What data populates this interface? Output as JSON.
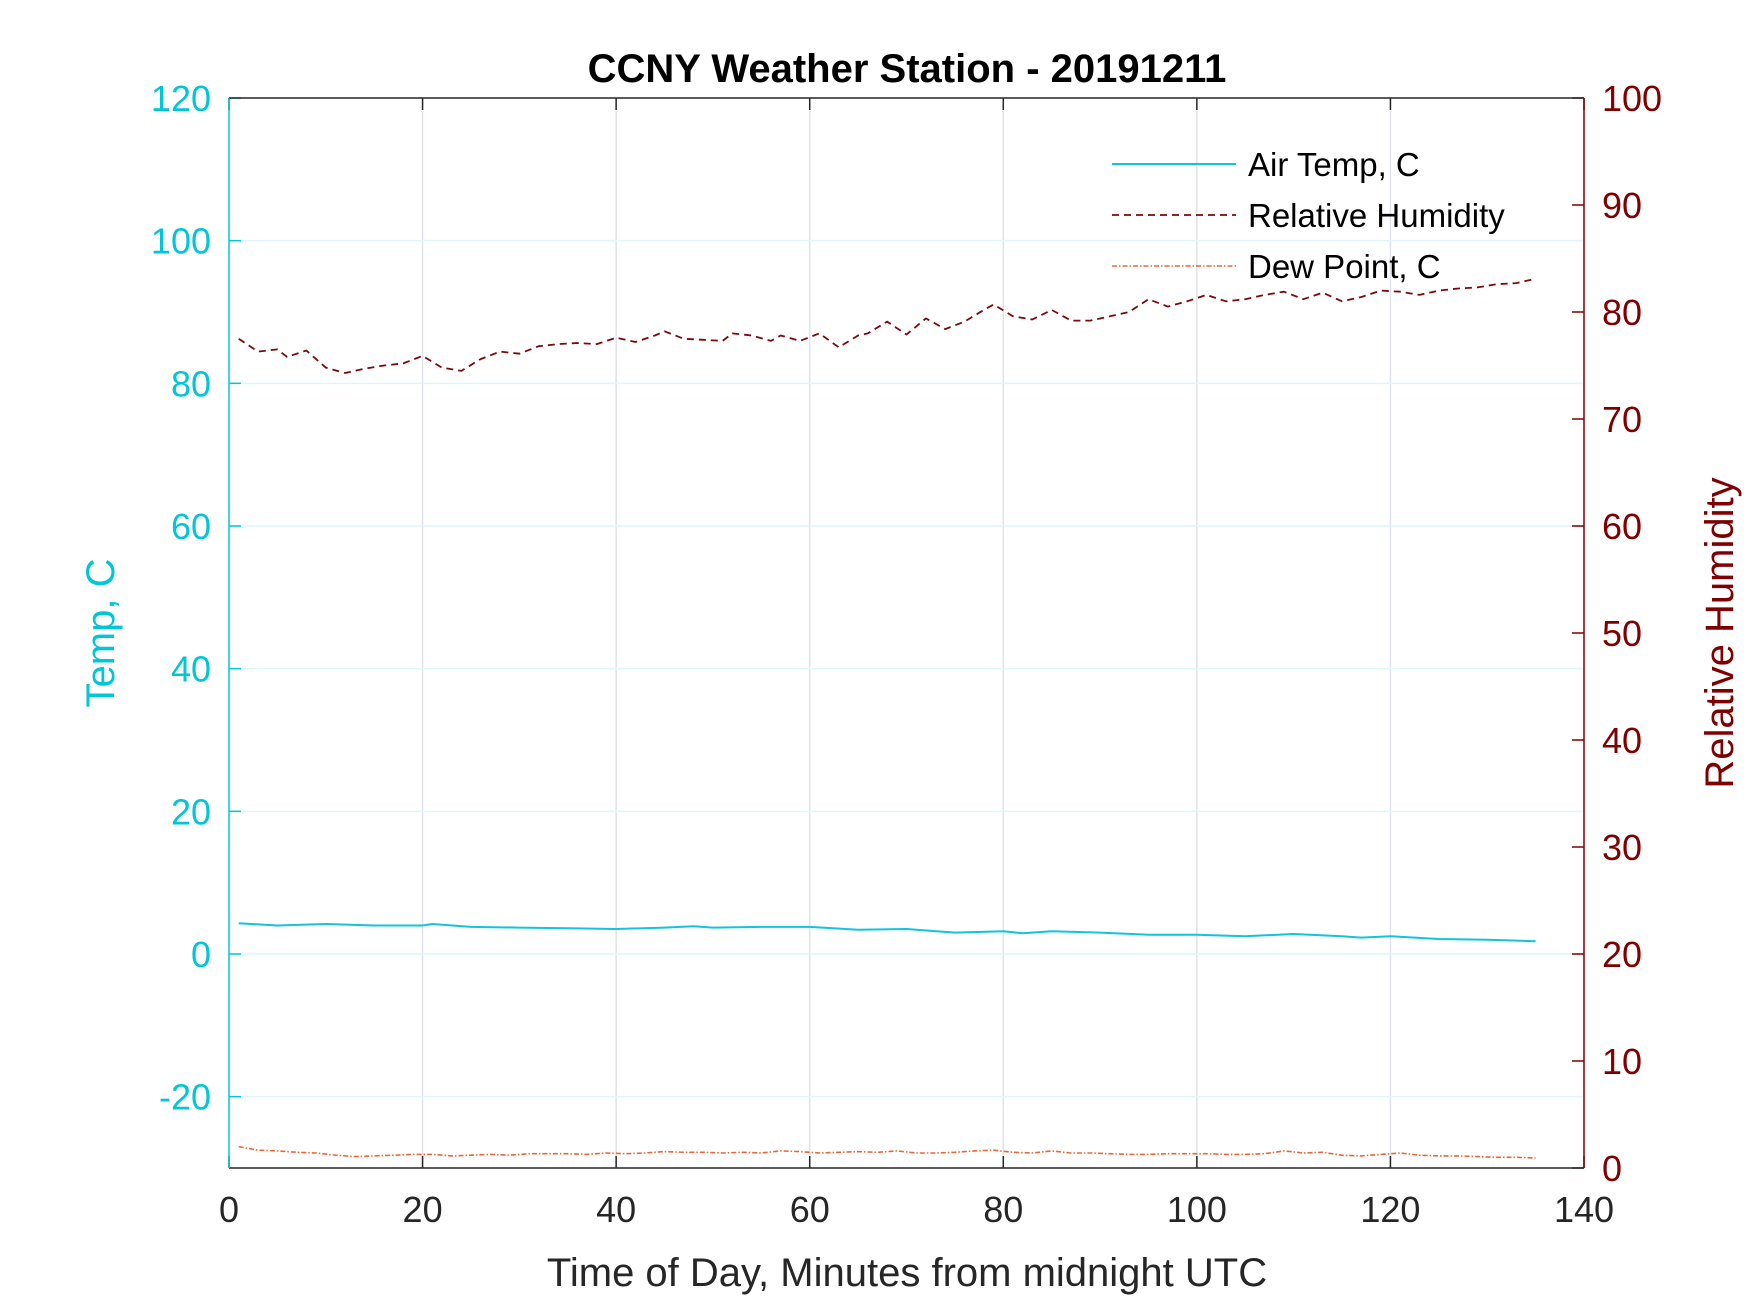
{
  "chart_data": {
    "type": "line",
    "title": "CCNY Weather Station - 20191211",
    "xlabel": "Time of Day, Minutes from midnight UTC",
    "ylabel_left": "Temp, C",
    "ylabel_right": "Relative Humidity",
    "xlim": [
      0,
      140
    ],
    "ylim_left": [
      -30,
      120
    ],
    "ylim_right": [
      0,
      100
    ],
    "x_ticks": [
      "0",
      "20",
      "40",
      "60",
      "80",
      "100",
      "120",
      "140"
    ],
    "y_left_ticks": [
      "-20",
      "0",
      "20",
      "40",
      "60",
      "80",
      "100",
      "120"
    ],
    "y_right_ticks": [
      "0",
      "10",
      "20",
      "30",
      "40",
      "50",
      "60",
      "70",
      "80",
      "90",
      "100"
    ],
    "grid": true,
    "legend_position": "top-right",
    "colors": {
      "left_axis": "#00c6d8",
      "right_axis": "#7f0000",
      "air_temp": "#12c4dc",
      "humidity": "#7a0a0a",
      "dew_point": "#e8683a"
    },
    "series": [
      {
        "name": "Air Temp, C",
        "axis": "left",
        "style": "solid",
        "x": [
          1,
          5,
          10,
          15,
          20,
          21,
          25,
          30,
          35,
          40,
          45,
          48,
          50,
          55,
          60,
          65,
          70,
          75,
          80,
          82,
          85,
          90,
          95,
          100,
          105,
          110,
          115,
          117,
          120,
          125,
          130,
          135
        ],
        "values": [
          4.3,
          4.0,
          4.2,
          4.0,
          4.0,
          4.2,
          3.8,
          3.7,
          3.6,
          3.5,
          3.7,
          3.9,
          3.7,
          3.8,
          3.8,
          3.4,
          3.5,
          3.0,
          3.2,
          2.9,
          3.2,
          3.0,
          2.7,
          2.7,
          2.5,
          2.8,
          2.5,
          2.3,
          2.5,
          2.1,
          2.0,
          1.8
        ]
      },
      {
        "name": "Relative Humidity",
        "axis": "right",
        "style": "dashed",
        "x": [
          1,
          3,
          5,
          6,
          8,
          10,
          12,
          14,
          16,
          18,
          20,
          22,
          24,
          26,
          28,
          30,
          32,
          34,
          36,
          38,
          40,
          42,
          44,
          45,
          47,
          49,
          51,
          52,
          54,
          56,
          57,
          59,
          61,
          63,
          65,
          66,
          68,
          70,
          72,
          74,
          76,
          78,
          79,
          81,
          83,
          85,
          87,
          89,
          91,
          93,
          95,
          97,
          99,
          101,
          103,
          105,
          107,
          109,
          111,
          113,
          115,
          117,
          119,
          121,
          123,
          125,
          127,
          129,
          131,
          133,
          135
        ],
        "values": [
          77.5,
          76.3,
          76.5,
          75.8,
          76.4,
          74.8,
          74.3,
          74.7,
          75.0,
          75.2,
          75.9,
          74.8,
          74.5,
          75.6,
          76.3,
          76.1,
          76.8,
          77.0,
          77.1,
          77.0,
          77.6,
          77.2,
          77.8,
          78.2,
          77.5,
          77.4,
          77.3,
          78.0,
          77.8,
          77.3,
          77.8,
          77.3,
          78.0,
          76.7,
          77.8,
          78.0,
          79.1,
          77.9,
          79.4,
          78.4,
          79.1,
          80.2,
          80.7,
          79.6,
          79.3,
          80.2,
          79.2,
          79.2,
          79.6,
          80.0,
          81.2,
          80.5,
          81.0,
          81.6,
          81.0,
          81.2,
          81.6,
          81.9,
          81.2,
          81.8,
          81.0,
          81.4,
          82.0,
          81.9,
          81.6,
          82.0,
          82.2,
          82.3,
          82.6,
          82.7,
          83.1
        ]
      },
      {
        "name": "Dew Point, C",
        "axis": "left",
        "style": "dash-dot",
        "x": [
          1,
          3,
          5,
          7,
          9,
          11,
          13,
          15,
          17,
          19,
          21,
          23,
          25,
          27,
          29,
          31,
          33,
          35,
          37,
          39,
          41,
          43,
          45,
          47,
          49,
          51,
          53,
          55,
          57,
          59,
          61,
          63,
          65,
          67,
          69,
          71,
          73,
          75,
          77,
          79,
          81,
          83,
          85,
          87,
          89,
          91,
          93,
          95,
          97,
          99,
          101,
          103,
          105,
          107,
          109,
          111,
          113,
          115,
          117,
          119,
          121,
          123,
          125,
          127,
          129,
          131,
          133,
          135
        ],
        "values": [
          -27.0,
          -27.5,
          -27.6,
          -27.8,
          -27.9,
          -28.2,
          -28.4,
          -28.3,
          -28.2,
          -28.1,
          -28.1,
          -28.3,
          -28.2,
          -28.1,
          -28.2,
          -28.0,
          -28.0,
          -28.0,
          -28.1,
          -27.9,
          -28.0,
          -27.9,
          -27.7,
          -27.8,
          -27.8,
          -27.9,
          -27.8,
          -27.9,
          -27.6,
          -27.7,
          -27.9,
          -27.8,
          -27.7,
          -27.8,
          -27.6,
          -27.9,
          -27.9,
          -27.8,
          -27.6,
          -27.5,
          -27.8,
          -27.9,
          -27.6,
          -27.9,
          -27.9,
          -28.0,
          -28.1,
          -28.1,
          -28.0,
          -28.0,
          -28.0,
          -28.1,
          -28.1,
          -28.0,
          -27.6,
          -27.9,
          -27.8,
          -28.2,
          -28.3,
          -28.1,
          -27.9,
          -28.2,
          -28.3,
          -28.3,
          -28.4,
          -28.5,
          -28.5,
          -28.6
        ]
      }
    ]
  }
}
